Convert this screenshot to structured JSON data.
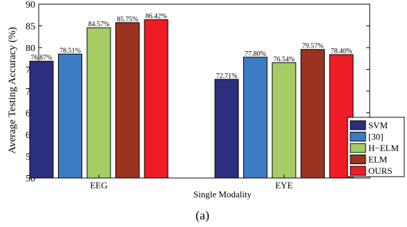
{
  "chart_data": {
    "type": "bar",
    "title": "",
    "xlabel": "Single Modality",
    "ylabel": "Average Testing Accuracy (%)",
    "ylim": [
      50,
      90
    ],
    "yticks": [
      50,
      55,
      60,
      65,
      70,
      75,
      80,
      85,
      90
    ],
    "categories": [
      "EEG",
      "EYE"
    ],
    "series": [
      {
        "name": "SVM",
        "values": [
          76.87,
          72.71
        ],
        "labels": [
          "76.87%",
          "72.71%"
        ],
        "color": "#2b2f7e"
      },
      {
        "name": "[30]",
        "values": [
          78.51,
          77.8
        ],
        "labels": [
          "78.51%",
          "77.80%"
        ],
        "color": "#3d7cc4"
      },
      {
        "name": "H−ELM",
        "values": [
          84.57,
          76.54
        ],
        "labels": [
          "84.57%",
          "76.54%"
        ],
        "color": "#a6cd63"
      },
      {
        "name": "ELM",
        "values": [
          85.75,
          79.57
        ],
        "labels": [
          "85.75%",
          "79.57%"
        ],
        "color": "#9b3320"
      },
      {
        "name": "OURS",
        "values": [
          86.42,
          78.4
        ],
        "labels": [
          "86.42%",
          "78.40%"
        ],
        "color": "#ee1c24"
      }
    ],
    "legend_position": "bottom-right",
    "grid": false
  },
  "figure": {
    "panel_label": "(a)"
  }
}
